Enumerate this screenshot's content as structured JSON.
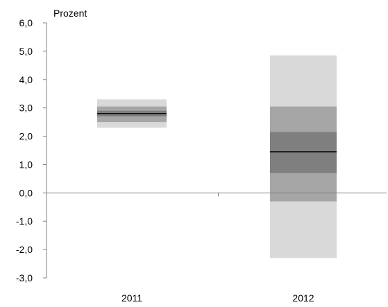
{
  "chart_data": {
    "type": "bar",
    "subtype": "fan-chart",
    "unit_label": "Prozent",
    "categories": [
      "2011",
      "2012"
    ],
    "ylim": [
      -3.0,
      6.0
    ],
    "yticks": [
      "6,0",
      "5,0",
      "4,0",
      "3,0",
      "2,0",
      "1,0",
      "0,0",
      "-1,0",
      "-2,0",
      "-3,0"
    ],
    "ytick_values": [
      6,
      5,
      4,
      3,
      2,
      1,
      0,
      -1,
      -2,
      -3
    ],
    "grid": false,
    "colors": {
      "outer_band": "#d9d9d9",
      "middle_band": "#a6a6a6",
      "inner_band": "#7f7f7f",
      "median": "#000000",
      "axis": "#808080"
    },
    "bands": [
      {
        "category": "2011",
        "outer": [
          2.3,
          3.3
        ],
        "middle": [
          2.5,
          3.05
        ],
        "inner": [
          2.7,
          2.9
        ],
        "median": 2.8
      },
      {
        "category": "2012",
        "outer": [
          -2.3,
          4.85
        ],
        "middle": [
          -0.3,
          3.05
        ],
        "inner": [
          0.7,
          2.15
        ],
        "median": 1.45
      }
    ]
  }
}
